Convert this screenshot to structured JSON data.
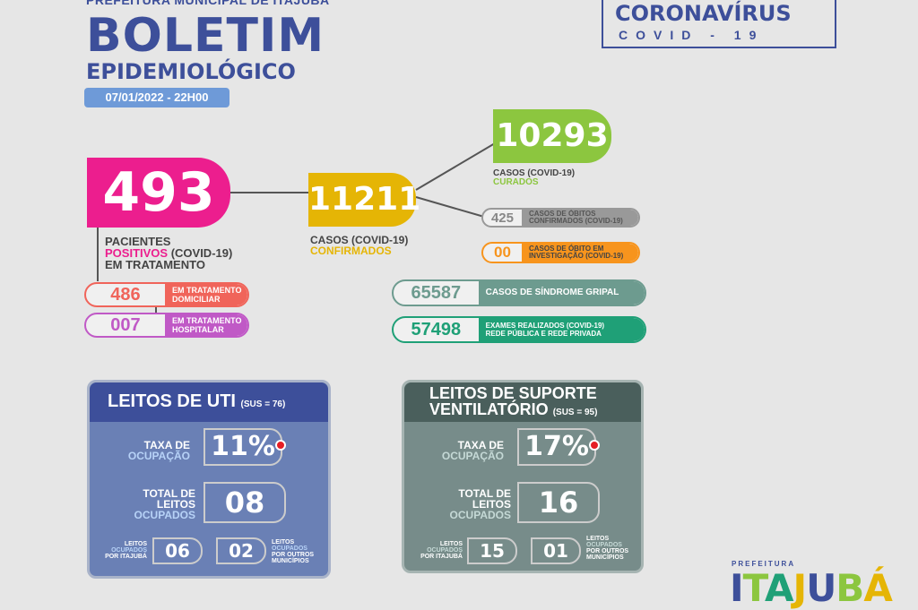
{
  "header": {
    "municipality": "PREFEITURA MUNICIPAL DE ITAJUBÁ",
    "title": "BOLETIM",
    "subtitle": "EPIDEMIOLÓGICO",
    "date": "07/01/2022 - 22H00"
  },
  "badge": {
    "title": "CORONAVÍRUS",
    "subtitle": "COVID - 19"
  },
  "treatment": {
    "value": "493",
    "label_1": "PACIENTES",
    "label_2a": "POSITIVOS",
    "label_2b": " (COVID-19)",
    "label_3": "EM TRATAMENTO",
    "home": {
      "value": "486",
      "label_1": "EM TRATAMENTO",
      "label_2": "DOMICILIAR"
    },
    "hospital": {
      "value": "007",
      "label_1": "EM TRATAMENTO",
      "label_2": "HOSPITALAR"
    }
  },
  "confirmed": {
    "value": "11211",
    "label_1": "CASOS (COVID-19)",
    "label_2": "CONFIRMADOS"
  },
  "recovered": {
    "value": "10293",
    "label_1": "CASOS (COVID-19)",
    "label_2": "CURADOS"
  },
  "deaths": {
    "value": "425",
    "label_1": "CASOS DE ÓBITOS",
    "label_2": "CONFIRMADOS (COVID-19)"
  },
  "deaths_investigation": {
    "value": "00",
    "label_1": "CASOS DE ÓBITO EM",
    "label_2": "INVESTIGAÇÃO (COVID-19)"
  },
  "flu": {
    "value": "65587",
    "label": "CASOS DE SÍNDROME GRIPAL"
  },
  "exams": {
    "value": "57498",
    "label_1": "EXAMES REALIZADOS (COVID-19)",
    "label_2": "REDE PÚBLICA E REDE PRIVADA"
  },
  "uti": {
    "title": "LEITOS DE UTI",
    "sus": "(SUS = 76)",
    "rate_label_1": "TAXA DE",
    "rate_label_2": "OCUPAÇÃO",
    "rate": "11%",
    "total_label_1": "TOTAL DE",
    "total_label_2": "LEITOS",
    "total_label_3": "OCUPADOS",
    "total": "08",
    "itajuba_label_1": "LEITOS",
    "itajuba_label_2": "OCUPADOS",
    "itajuba_label_3": "POR ITAJUBÁ",
    "itajuba": "06",
    "others": "02",
    "others_label_1": "LEITOS",
    "others_label_2": "OCUPADOS",
    "others_label_3": "POR OUTROS",
    "others_label_4": "MUNICÍPIOS"
  },
  "vent": {
    "title_1": "LEITOS DE SUPORTE",
    "title_2": "VENTILATÓRIO",
    "sus": "(SUS = 95)",
    "rate_label_1": "TAXA DE",
    "rate_label_2": "OCUPAÇÃO",
    "rate": "17%",
    "total_label_1": "TOTAL DE",
    "total_label_2": "LEITOS",
    "total_label_3": "OCUPADOS",
    "total": "16",
    "itajuba_label_1": "LEITOS",
    "itajuba_label_2": "OCUPADOS",
    "itajuba_label_3": "POR ITAJUBÁ",
    "itajuba": "15",
    "others": "01",
    "others_label_1": "LEITOS",
    "others_label_2": "OCUPADOS",
    "others_label_3": "POR OUTROS",
    "others_label_4": "MUNICÍPIOS"
  },
  "logo": {
    "small": "PREFEITURA",
    "big": "ITAJUBÁ"
  },
  "colors": {
    "navy": "#3d4f9a",
    "magenta": "#ec1e8e",
    "gold": "#e5b505",
    "green": "#8cc63f",
    "coral": "#f0645a",
    "purple": "#c059c6",
    "orange": "#f7941d",
    "teal": "#6d9b8f",
    "darkgreen": "#1fa077"
  }
}
